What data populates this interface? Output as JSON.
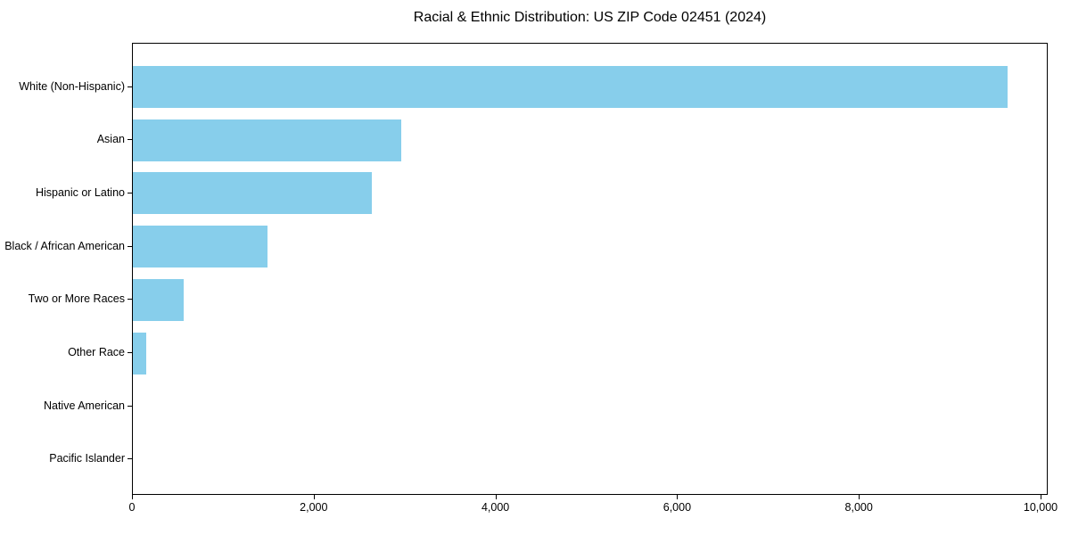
{
  "chart_data": {
    "type": "bar",
    "orientation": "horizontal",
    "title": "Racial & Ethnic Distribution: US ZIP Code 02451 (2024)",
    "categories": [
      "White (Non-Hispanic)",
      "Asian",
      "Hispanic or Latino",
      "Black / African American",
      "Two or More Races",
      "Other Race",
      "Native American",
      "Pacific Islander"
    ],
    "values": [
      9625,
      2950,
      2630,
      1480,
      560,
      145,
      0,
      0
    ],
    "bar_color": "#87CEEB",
    "xlabel": "",
    "ylabel": "",
    "xlim": [
      0,
      10080
    ],
    "xticks": [
      0,
      2000,
      4000,
      6000,
      8000,
      10000
    ],
    "xtick_labels": [
      "0",
      "2,000",
      "4,000",
      "6,000",
      "8,000",
      "10,000"
    ],
    "grid": false,
    "legend": null,
    "background_color": "#ffffff",
    "text_color": "#000000"
  }
}
